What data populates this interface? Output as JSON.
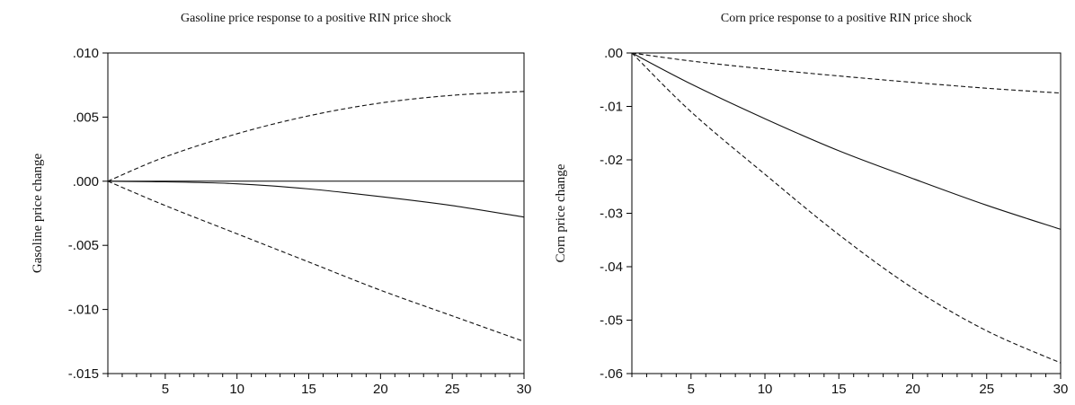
{
  "chart_data": [
    {
      "type": "line",
      "title": "Gasoline price response to a positive RIN price shock",
      "xlabel": "",
      "ylabel": "Gasoline price change",
      "xlim": [
        1,
        30
      ],
      "ylim": [
        -0.015,
        0.01
      ],
      "xticks": [
        5,
        10,
        15,
        20,
        25,
        30
      ],
      "xtick_labels": [
        "5",
        "10",
        "15",
        "20",
        "25",
        "30"
      ],
      "yticks": [
        0.01,
        0.005,
        0.0,
        -0.005,
        -0.01,
        -0.015
      ],
      "ytick_labels": [
        ".010",
        ".005",
        ".000",
        "-.005",
        "-.010",
        "-.015"
      ],
      "zero_line": true,
      "series": [
        {
          "style": "dashed",
          "x": [
            1,
            5,
            10,
            15,
            20,
            25,
            30
          ],
          "y": [
            0.0,
            0.0019,
            0.0037,
            0.0051,
            0.0061,
            0.0067,
            0.007
          ]
        },
        {
          "style": "solid",
          "x": [
            1,
            5,
            10,
            15,
            20,
            25,
            30
          ],
          "y": [
            0.0,
            -5e-05,
            -0.0002,
            -0.0006,
            -0.0012,
            -0.0019,
            -0.0028
          ]
        },
        {
          "style": "dashed",
          "x": [
            1,
            5,
            10,
            15,
            20,
            25,
            30
          ],
          "y": [
            0.0,
            -0.0019,
            -0.0041,
            -0.0063,
            -0.0085,
            -0.0105,
            -0.0125
          ]
        }
      ]
    },
    {
      "type": "line",
      "title": "Corn price response to a positive RIN price shock",
      "xlabel": "",
      "ylabel": "Corn price change",
      "xlim": [
        1,
        30
      ],
      "ylim": [
        -0.06,
        0.0
      ],
      "xticks": [
        5,
        10,
        15,
        20,
        25,
        30
      ],
      "xtick_labels": [
        "5",
        "10",
        "15",
        "20",
        "25",
        "30"
      ],
      "yticks": [
        0.0,
        -0.01,
        -0.02,
        -0.03,
        -0.04,
        -0.05,
        -0.06
      ],
      "ytick_labels": [
        ".00",
        "-.01",
        "-.02",
        "-.03",
        "-.04",
        "-.05",
        "-.06"
      ],
      "zero_line": false,
      "series": [
        {
          "style": "dashed",
          "x": [
            1,
            5,
            10,
            15,
            20,
            25,
            30
          ],
          "y": [
            0.0,
            -0.0015,
            -0.003,
            -0.0043,
            -0.0055,
            -0.0066,
            -0.0075
          ]
        },
        {
          "style": "solid",
          "x": [
            1,
            5,
            10,
            15,
            20,
            25,
            30
          ],
          "y": [
            0.0,
            -0.0058,
            -0.0123,
            -0.0183,
            -0.0235,
            -0.0285,
            -0.033
          ]
        },
        {
          "style": "dashed",
          "x": [
            1,
            5,
            10,
            15,
            20,
            25,
            30
          ],
          "y": [
            0.0,
            -0.011,
            -0.0227,
            -0.034,
            -0.044,
            -0.052,
            -0.058
          ]
        }
      ]
    }
  ]
}
